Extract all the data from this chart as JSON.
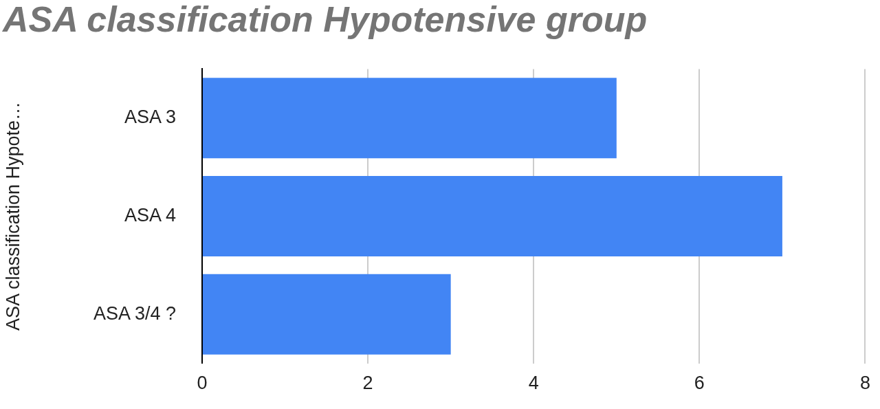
{
  "chart_data": {
    "type": "bar",
    "orientation": "horizontal",
    "title": "ASA classification Hypotensive group",
    "ylabel": "ASA classification Hypote…",
    "categories": [
      "ASA 3",
      "ASA 4",
      "ASA 3/4 ?"
    ],
    "series": [
      {
        "color": "#4285f4",
        "values": [
          5,
          7,
          3
        ]
      }
    ],
    "xlim": [
      0,
      8
    ],
    "xticks": [
      0,
      2,
      4,
      6,
      8
    ],
    "grid": "x",
    "legend": false
  }
}
